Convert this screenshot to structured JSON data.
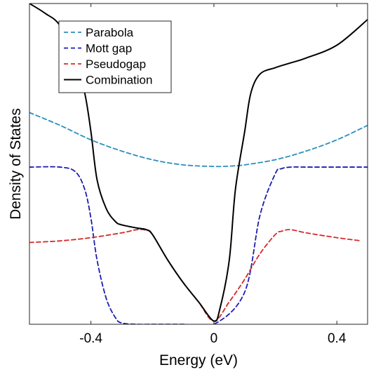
{
  "chart_data": {
    "type": "line",
    "xlabel": "Energy (eV)",
    "ylabel": "Density of States",
    "xlim": [
      -0.6,
      0.5
    ],
    "ylim": [
      0,
      1
    ],
    "x_ticks": [
      -0.4,
      0,
      0.4
    ],
    "x_tick_labels": [
      "-0.4",
      "0",
      "0.4"
    ],
    "y_ticks_shown": false,
    "grid": false,
    "legend_position": "top-left",
    "series": [
      {
        "name": "Parabola",
        "color": "#2a8fbd",
        "dash": "dashed",
        "x": [
          -0.6,
          -0.5,
          -0.4,
          -0.3,
          -0.2,
          -0.1,
          0,
          0.05,
          0.1,
          0.2,
          0.3,
          0.4,
          0.5
        ],
        "y": [
          0.66,
          0.62,
          0.575,
          0.54,
          0.513,
          0.497,
          0.492,
          0.493,
          0.497,
          0.513,
          0.54,
          0.575,
          0.62
        ]
      },
      {
        "name": "Mott gap",
        "color": "#1c1cb4",
        "dash": "dashed",
        "x": [
          -0.6,
          -0.5,
          -0.45,
          -0.42,
          -0.4,
          -0.38,
          -0.35,
          -0.32,
          -0.3,
          -0.25,
          -0.2,
          -0.1,
          0,
          0.1,
          0.15,
          0.2,
          0.22,
          0.25,
          0.3,
          0.4,
          0.5
        ],
        "y": [
          0.49,
          0.49,
          0.475,
          0.42,
          0.33,
          0.2,
          0.08,
          0.02,
          0.004,
          0.0,
          0.0,
          0.0,
          0.0,
          0.1,
          0.34,
          0.47,
          0.485,
          0.49,
          0.49,
          0.49,
          0.49
        ]
      },
      {
        "name": "Pseudogap",
        "color": "#d42a2a",
        "dash": "dashed",
        "x": [
          -0.6,
          -0.5,
          -0.4,
          -0.3,
          -0.25,
          -0.22,
          -0.2,
          -0.15,
          -0.1,
          -0.05,
          0,
          0.05,
          0.1,
          0.15,
          0.2,
          0.22,
          0.25,
          0.3,
          0.4,
          0.48
        ],
        "y": [
          0.255,
          0.26,
          0.27,
          0.285,
          0.295,
          0.293,
          0.28,
          0.2,
          0.13,
          0.07,
          0.01,
          0.07,
          0.14,
          0.22,
          0.28,
          0.29,
          0.295,
          0.285,
          0.27,
          0.26
        ]
      },
      {
        "name": "Combination",
        "color": "#000000",
        "dash": "solid",
        "x": [
          -0.6,
          -0.55,
          -0.5,
          -0.45,
          -0.42,
          -0.4,
          -0.38,
          -0.35,
          -0.32,
          -0.3,
          -0.25,
          -0.22,
          -0.2,
          -0.15,
          -0.1,
          -0.05,
          0,
          0.02,
          0.05,
          0.07,
          0.1,
          0.12,
          0.15,
          0.2,
          0.25,
          0.3,
          0.4,
          0.5
        ],
        "y": [
          1.0,
          0.97,
          0.93,
          0.82,
          0.72,
          0.6,
          0.45,
          0.36,
          0.32,
          0.31,
          0.3,
          0.295,
          0.28,
          0.2,
          0.13,
          0.07,
          0.01,
          0.05,
          0.2,
          0.42,
          0.6,
          0.72,
          0.78,
          0.8,
          0.815,
          0.83,
          0.87,
          0.95
        ]
      }
    ]
  }
}
